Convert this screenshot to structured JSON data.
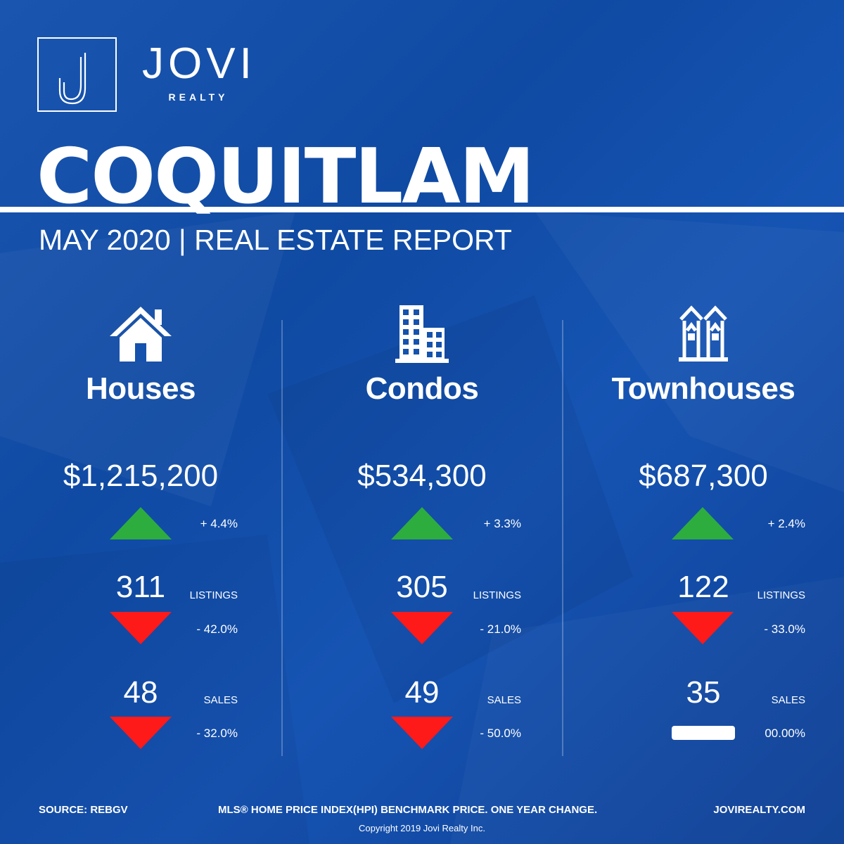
{
  "brand": {
    "name": "JOVI",
    "sub": "REALTY",
    "logo_letter": "J"
  },
  "city": "COQUITLAM",
  "subtitle": "MAY 2020 | REAL ESTATE REPORT",
  "colors": {
    "background": "#1452ad",
    "up": "#2ead3f",
    "down": "#ff1a1a",
    "text": "#ffffff"
  },
  "columns": [
    {
      "icon": "house-icon",
      "title": "Houses",
      "price": "$1,215,200",
      "price_change": "+ 4.4%",
      "price_dir": "up",
      "listings": "311",
      "listings_label": "LISTINGS",
      "listings_change": "- 42.0%",
      "listings_dir": "down",
      "sales": "48",
      "sales_label": "SALES",
      "sales_change": "- 32.0%",
      "sales_dir": "down"
    },
    {
      "icon": "building-icon",
      "title": "Condos",
      "price": "$534,300",
      "price_change": "+ 3.3%",
      "price_dir": "up",
      "listings": "305",
      "listings_label": "LISTINGS",
      "listings_change": "- 21.0%",
      "listings_dir": "down",
      "sales": "49",
      "sales_label": "SALES",
      "sales_change": "- 50.0%",
      "sales_dir": "down"
    },
    {
      "icon": "townhouse-icon",
      "title": "Townhouses",
      "price": "$687,300",
      "price_change": "+ 2.4%",
      "price_dir": "up",
      "listings": "122",
      "listings_label": "LISTINGS",
      "listings_change": "- 33.0%",
      "listings_dir": "down",
      "sales": "35",
      "sales_label": "SALES",
      "sales_change": "00.00%",
      "sales_dir": "flat"
    }
  ],
  "footer": {
    "source": "SOURCE:  REBGV",
    "note": "MLS® HOME PRICE INDEX(HPI) BENCHMARK PRICE. ONE YEAR CHANGE.",
    "website": "JOVIREALTY.COM",
    "copyright": "Copyright 2019 Jovi Realty Inc."
  }
}
